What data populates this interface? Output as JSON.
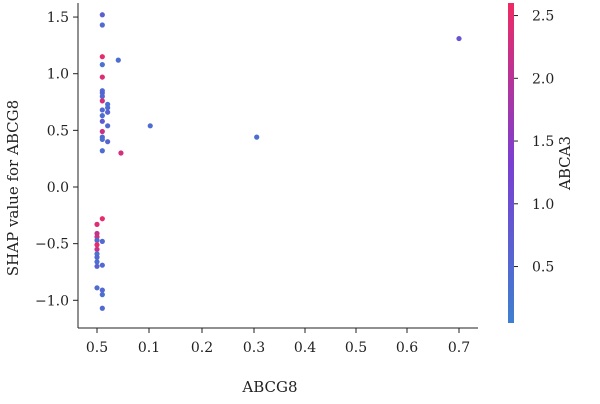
{
  "chart_data": {
    "type": "scatter",
    "title": "",
    "xlabel": "ABCG8",
    "ylabel": "SHAP value for ABCG8",
    "x_tick_labels": [
      "0.5",
      "0.1",
      "0.2",
      "0.3",
      "0.4",
      "0.5",
      "0.6",
      "0.7"
    ],
    "y_ticks": [
      "1.5",
      "1.0",
      "0.5",
      "0.0",
      "−0.5",
      "−1.0"
    ],
    "colorbar": {
      "label": "ABCA3",
      "range": [
        0.05,
        2.6
      ],
      "ticks": [
        "2.5",
        "2.0",
        "1.5",
        "1.0",
        "0.5"
      ],
      "low_color": "#3e7fd0",
      "mid_color": "#7a3fd2",
      "high_color": "#ef2a63"
    },
    "points": [
      {
        "x": 0.02,
        "y": 1.52,
        "c": 0.7
      },
      {
        "x": 0.02,
        "y": 1.43,
        "c": 0.5
      },
      {
        "x": 0.05,
        "y": 1.12,
        "c": 0.4
      },
      {
        "x": 0.02,
        "y": 1.15,
        "c": 2.5
      },
      {
        "x": 0.02,
        "y": 1.08,
        "c": 0.3
      },
      {
        "x": 0.02,
        "y": 0.97,
        "c": 2.4
      },
      {
        "x": 0.02,
        "y": 0.85,
        "c": 0.4
      },
      {
        "x": 0.02,
        "y": 0.83,
        "c": 0.6
      },
      {
        "x": 0.02,
        "y": 0.8,
        "c": 0.5
      },
      {
        "x": 0.02,
        "y": 0.76,
        "c": 2.3
      },
      {
        "x": 0.03,
        "y": 0.73,
        "c": 0.3
      },
      {
        "x": 0.03,
        "y": 0.7,
        "c": 0.4
      },
      {
        "x": 0.02,
        "y": 0.68,
        "c": 0.5
      },
      {
        "x": 0.03,
        "y": 0.66,
        "c": 0.6
      },
      {
        "x": 0.02,
        "y": 0.63,
        "c": 0.4
      },
      {
        "x": 0.02,
        "y": 0.58,
        "c": 0.8
      },
      {
        "x": 0.03,
        "y": 0.54,
        "c": 0.5
      },
      {
        "x": 0.11,
        "y": 0.54,
        "c": 0.4
      },
      {
        "x": 0.02,
        "y": 0.49,
        "c": 2.2
      },
      {
        "x": 0.02,
        "y": 0.44,
        "c": 0.5
      },
      {
        "x": 0.02,
        "y": 0.42,
        "c": 0.4
      },
      {
        "x": 0.31,
        "y": 0.44,
        "c": 0.4
      },
      {
        "x": 0.03,
        "y": 0.4,
        "c": 0.6
      },
      {
        "x": 0.02,
        "y": 0.32,
        "c": 0.4
      },
      {
        "x": 0.055,
        "y": 0.3,
        "c": 2.3
      },
      {
        "x": 0.69,
        "y": 1.31,
        "c": 0.9
      },
      {
        "x": 0.02,
        "y": -0.28,
        "c": 2.5
      },
      {
        "x": 0.01,
        "y": -0.33,
        "c": 2.4
      },
      {
        "x": 0.01,
        "y": -0.41,
        "c": 2.1
      },
      {
        "x": 0.01,
        "y": -0.44,
        "c": 2.3
      },
      {
        "x": 0.01,
        "y": -0.47,
        "c": 0.4
      },
      {
        "x": 0.02,
        "y": -0.48,
        "c": 0.5
      },
      {
        "x": 0.01,
        "y": -0.51,
        "c": 2.5
      },
      {
        "x": 0.01,
        "y": -0.55,
        "c": 2.2
      },
      {
        "x": 0.01,
        "y": -0.59,
        "c": 0.3
      },
      {
        "x": 0.01,
        "y": -0.62,
        "c": 0.5
      },
      {
        "x": 0.01,
        "y": -0.66,
        "c": 0.4
      },
      {
        "x": 0.02,
        "y": -0.69,
        "c": 0.5
      },
      {
        "x": 0.01,
        "y": -0.7,
        "c": 0.6
      },
      {
        "x": 0.01,
        "y": -0.89,
        "c": 0.4
      },
      {
        "x": 0.02,
        "y": -0.91,
        "c": 0.5
      },
      {
        "x": 0.02,
        "y": -0.95,
        "c": 0.4
      },
      {
        "x": 0.02,
        "y": -1.07,
        "c": 0.5
      }
    ]
  }
}
